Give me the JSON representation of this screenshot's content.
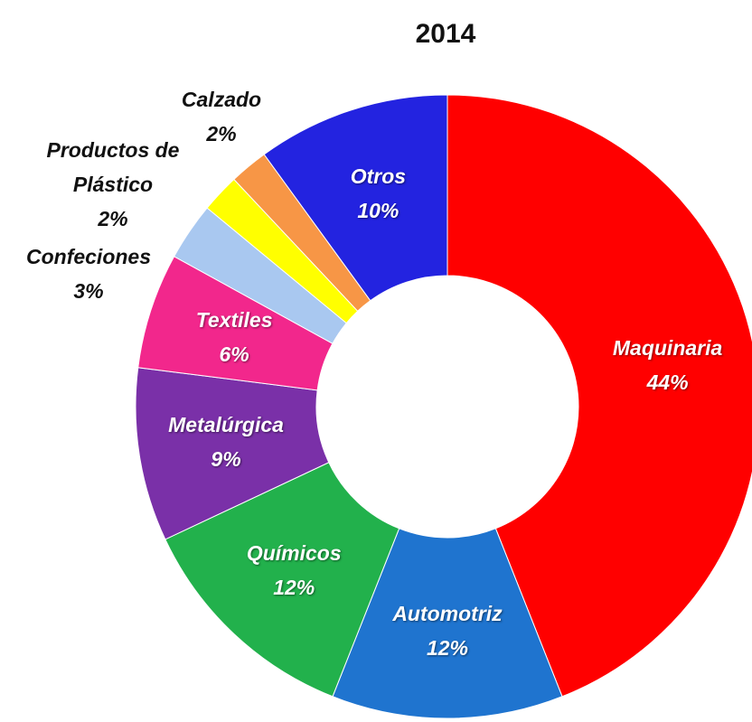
{
  "chart_data": {
    "type": "donut",
    "title": "2014",
    "categories": [
      "Maquinaria",
      "Automotriz",
      "Químicos",
      "Metalúrgica",
      "Textiles",
      "Confeciones",
      "Productos de Plástico",
      "Calzado",
      "Otros"
    ],
    "values": [
      44,
      12,
      12,
      9,
      6,
      3,
      2,
      2,
      10
    ],
    "value_labels": [
      "44%",
      "12%",
      "12%",
      "9%",
      "6%",
      "3%",
      "2%",
      "2%",
      "10%"
    ],
    "colors": [
      "#ff0000",
      "#1f74cf",
      "#22b14c",
      "#7a30a8",
      "#f2278c",
      "#a9c8f0",
      "#ffff00",
      "#f79646",
      "#2323e0"
    ]
  }
}
